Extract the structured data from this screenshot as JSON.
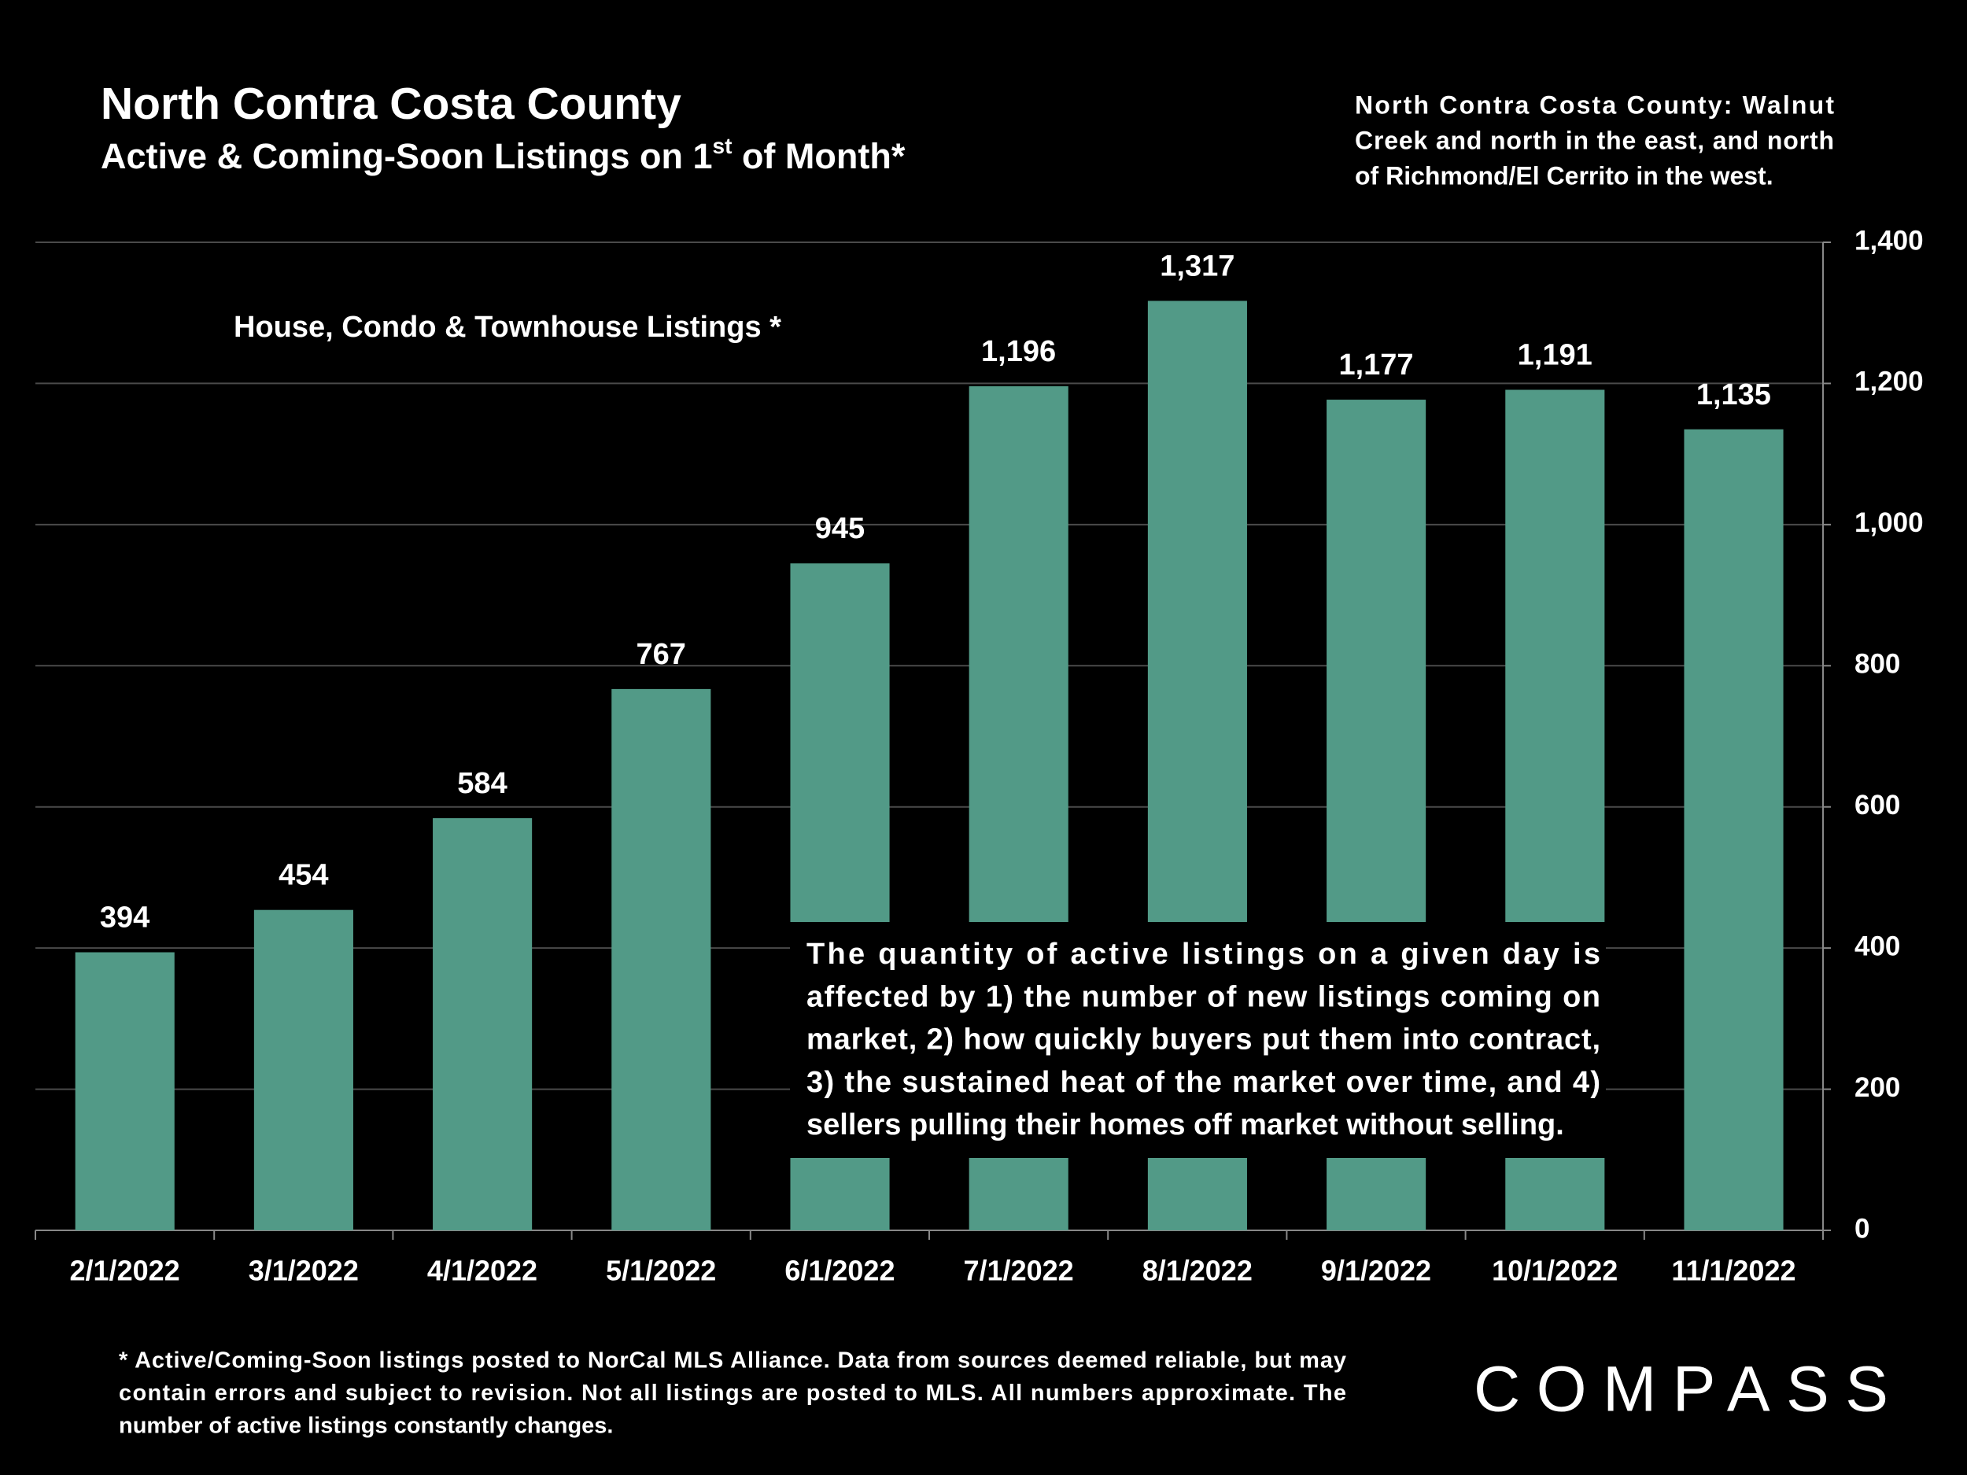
{
  "chart_data": {
    "type": "bar",
    "title": "North Contra Costa County",
    "subtitle": [
      "Active & Coming-Soon Listings on 1",
      "st",
      " of Month*"
    ],
    "series_label": "House, Condo & Townhouse Listings *",
    "note": [
      "North Contra Costa County: Walnut",
      "Creek and north in the east, and north",
      "of Richmond/El Cerrito in the west."
    ],
    "annotation": [
      "The quantity of active listings on a given day is",
      "affected by 1) the number of new listings coming on",
      "market, 2) how quickly buyers put them into contract,",
      "3) the sustained heat of the market over time, and 4)",
      "sellers pulling their homes off market without selling."
    ],
    "footnote": [
      "* Active/Coming-Soon listings posted to NorCal MLS Alliance.  Data from sources deemed reliable, but may",
      "contain errors and subject to revision.  Not all listings are posted to MLS. All numbers approximate. The",
      "number of active listings constantly changes."
    ],
    "logo": "COMPASS",
    "categories": [
      "2/1/2022",
      "3/1/2022",
      "4/1/2022",
      "5/1/2022",
      "6/1/2022",
      "7/1/2022",
      "8/1/2022",
      "9/1/2022",
      "10/1/2022",
      "11/1/2022"
    ],
    "values": [
      394,
      454,
      584,
      767,
      945,
      1196,
      1317,
      1177,
      1191,
      1135
    ],
    "value_labels": [
      "394",
      "454",
      "584",
      "767",
      "945",
      "1,196",
      "1,317",
      "1,177",
      "1,191",
      "1,135"
    ],
    "color": "#529a87",
    "ylim": [
      0,
      1400
    ],
    "yticks": [
      0,
      200,
      400,
      600,
      800,
      {
        "value": 1000,
        "label": "1,000"
      },
      {
        "value": 1200,
        "label": "1,200"
      },
      {
        "value": 1400,
        "label": "1,400"
      }
    ],
    "grid": true,
    "axis_side": "right"
  }
}
